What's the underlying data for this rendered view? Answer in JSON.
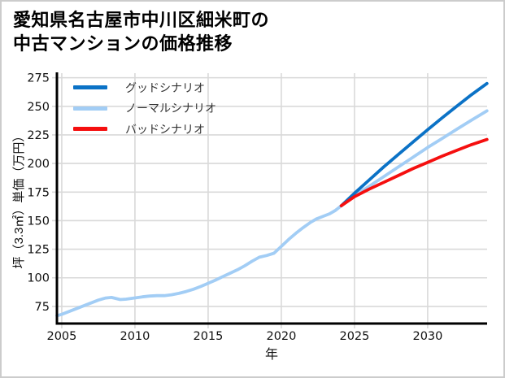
{
  "title": {
    "line1": "愛知県名古屋市中川区細米町の",
    "line2": "中古マンションの価格推移"
  },
  "colors": {
    "grid": "#d9d9d9",
    "axis": "#000000",
    "background": "#ffffff",
    "frame_border": "#cccccc",
    "tick_text": "#111111",
    "legend_text": "#333333"
  },
  "chart_data": {
    "type": "line",
    "title": "愛知県名古屋市中川区細米町の中古マンションの価格推移",
    "xlabel": "年",
    "ylabel": "坪（3.3㎡）単価（万円）",
    "grid": true,
    "legend_position": "upper-left-inside",
    "x_ticks": [
      2005,
      2010,
      2015,
      2020,
      2025,
      2030
    ],
    "y_ticks": [
      75,
      100,
      125,
      150,
      175,
      200,
      225,
      250,
      275
    ],
    "x_range": [
      2004.67,
      2034.06
    ],
    "y_range": [
      60,
      279
    ],
    "series": [
      {
        "id": "good",
        "name": "グッドシナリオ",
        "color": "#0b72c6",
        "x": [
          2024.1,
          2025,
          2026,
          2027,
          2028,
          2029,
          2030,
          2031,
          2032,
          2033,
          2034.05
        ],
        "values": [
          163,
          174,
          185.5,
          197,
          208,
          218.8,
          229.5,
          240,
          250.2,
          260.2,
          270
        ]
      },
      {
        "id": "normal",
        "name": "ノーマルシナリオ",
        "color": "#a2cdf5",
        "x": [
          2004.67,
          2005,
          2005.5,
          2006,
          2006.5,
          2007,
          2007.5,
          2008,
          2008.4,
          2009,
          2009.4,
          2010,
          2010.5,
          2011,
          2011.5,
          2012,
          2012.5,
          2013,
          2013.5,
          2014,
          2014.5,
          2015,
          2015.5,
          2016,
          2016.5,
          2017,
          2017.5,
          2018,
          2018.5,
          2019,
          2019.5,
          2020,
          2020.5,
          2021,
          2021.5,
          2022,
          2022.4,
          2022.8,
          2023.3,
          2023.7,
          2024.1,
          2025,
          2026,
          2027,
          2028,
          2029,
          2030,
          2031,
          2032,
          2033,
          2034.05
        ],
        "values": [
          66.8,
          68,
          70.5,
          73,
          75.5,
          78,
          80.5,
          82.3,
          82.8,
          81,
          81.3,
          82.4,
          83.3,
          84,
          84.4,
          84.4,
          85.2,
          86.4,
          88,
          90,
          92.4,
          95.2,
          98,
          101,
          104,
          107,
          110.5,
          114.5,
          118,
          119.5,
          121.5,
          127.5,
          133.5,
          139,
          144,
          148.5,
          151.5,
          153.5,
          156,
          159,
          163,
          172,
          180,
          188.5,
          197,
          205.5,
          214,
          222,
          230,
          238,
          246
        ]
      },
      {
        "id": "bad",
        "name": "バッドシナリオ",
        "color": "#f50f0f",
        "x": [
          2024.1,
          2025,
          2026,
          2027,
          2028,
          2029,
          2030,
          2031,
          2032,
          2033,
          2034.05
        ],
        "values": [
          163,
          171,
          177.5,
          183.5,
          189.5,
          195.5,
          201,
          206.5,
          211.5,
          216.5,
          221
        ]
      }
    ]
  }
}
